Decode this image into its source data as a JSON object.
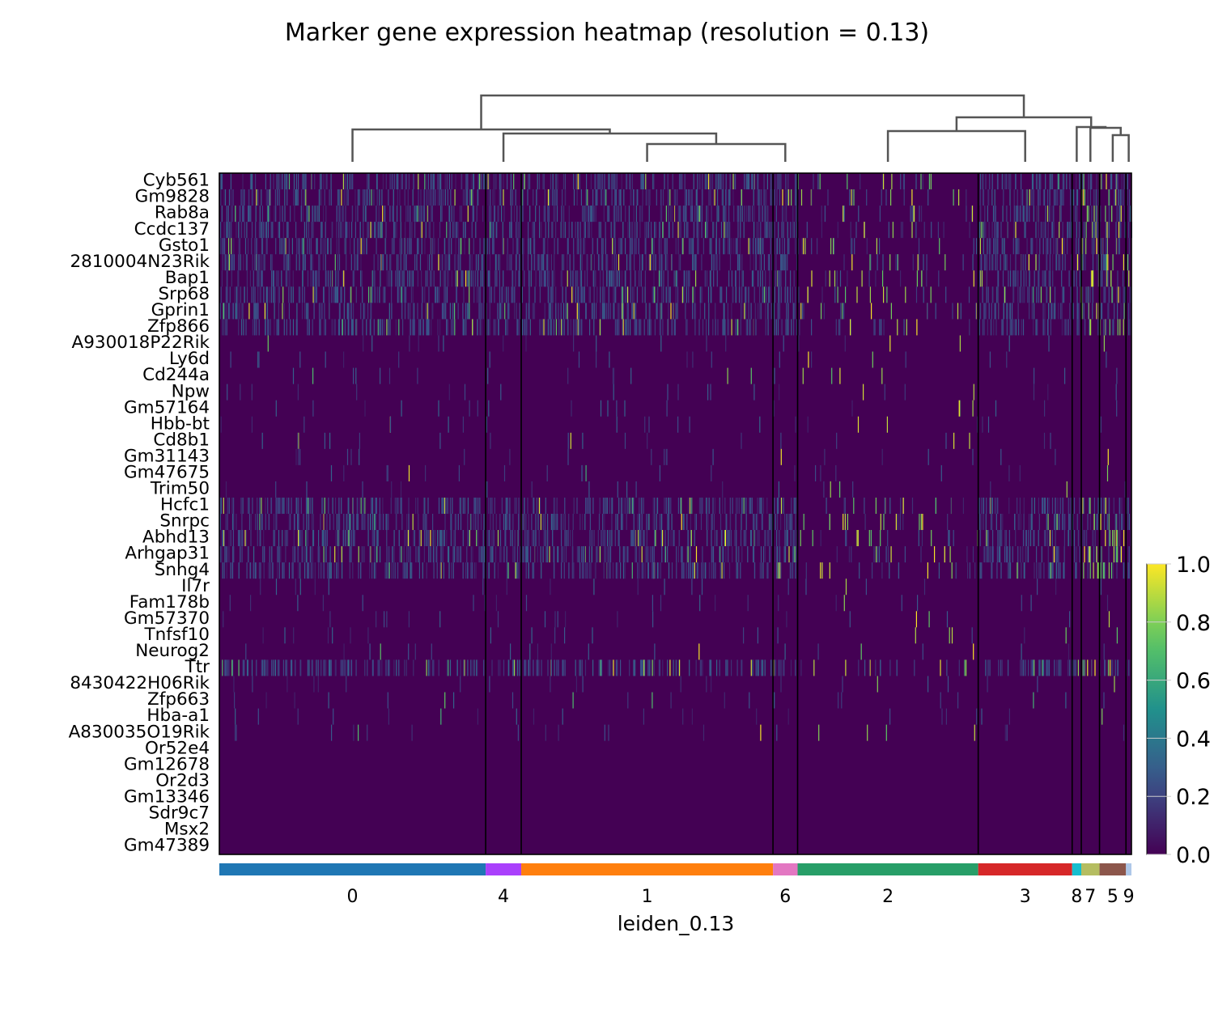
{
  "chart_data": {
    "type": "heatmap",
    "title": "Marker gene expression heatmap (resolution = 0.13)",
    "xlabel": "leiden_0.13",
    "genes": [
      "Cyb561",
      "Gm9828",
      "Rab8a",
      "Ccdc137",
      "Gsto1",
      "2810004N23Rik",
      "Bap1",
      "Srp68",
      "Gprin1",
      "Zfp866",
      "A930018P22Rik",
      "Ly6d",
      "Cd244a",
      "Npw",
      "Gm57164",
      "Hbb-bt",
      "Cd8b1",
      "Gm31143",
      "Gm47675",
      "Trim50",
      "Hcfc1",
      "Snrpc",
      "Abhd13",
      "Arhgap31",
      "Snhg4",
      "Il7r",
      "Fam178b",
      "Gm57370",
      "Tnfsf10",
      "Neurog2",
      "Ttr",
      "8430422H06Rik",
      "Zfp663",
      "Hba-a1",
      "A830035O19Rik",
      "Or52e4",
      "Gm12678",
      "Or2d3",
      "Gm13346",
      "Sdr9c7",
      "Msx2",
      "Gm47389"
    ],
    "clusters": [
      {
        "label": "0",
        "cells": 0.292,
        "color": "#1f77b4"
      },
      {
        "label": "4",
        "cells": 0.039,
        "color": "#aa40fc"
      },
      {
        "label": "1",
        "cells": 0.276,
        "color": "#ff7f0e"
      },
      {
        "label": "6",
        "cells": 0.027,
        "color": "#e377c2"
      },
      {
        "label": "2",
        "cells": 0.198,
        "color": "#279e68"
      },
      {
        "label": "3",
        "cells": 0.103,
        "color": "#d62728"
      },
      {
        "label": "8",
        "cells": 0.01,
        "color": "#17becf"
      },
      {
        "label": "7",
        "cells": 0.02,
        "color": "#b5bd61"
      },
      {
        "label": "5",
        "cells": 0.029,
        "color": "#8c564b"
      },
      {
        "label": "9",
        "cells": 0.006,
        "color": "#aec7e8"
      }
    ],
    "dendrogram": [
      {
        "left": "0",
        "right": "1-6 group"
      },
      {
        "left": "4",
        "right": "1+6"
      },
      {
        "left": "1",
        "right": "6"
      },
      {
        "left": "2",
        "right": "3"
      },
      {
        "left": "8",
        "right": "7+5+9"
      },
      {
        "left": "5",
        "right": "9"
      }
    ],
    "colorbar": {
      "min": 0.0,
      "max": 1.0,
      "ticks": [
        "0.0",
        "0.2",
        "0.4",
        "0.6",
        "0.8",
        "1.0"
      ],
      "colormap": "viridis"
    },
    "background_color": "#440154",
    "legend": "colorbar-right"
  }
}
